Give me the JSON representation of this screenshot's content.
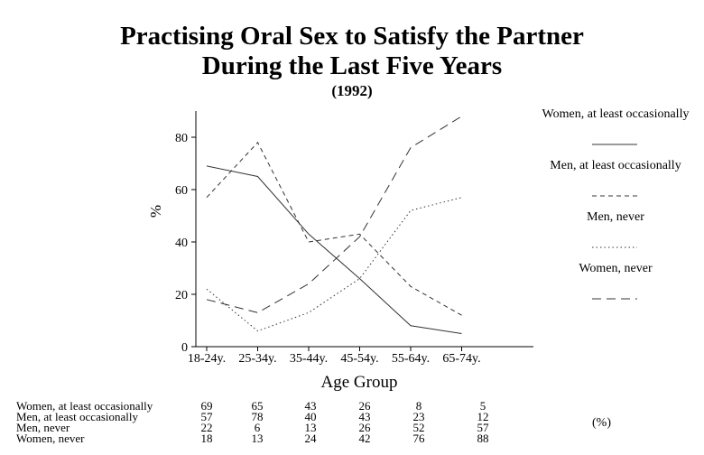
{
  "chart_data": {
    "type": "line",
    "title": "Practising Oral Sex to Satisfy the Partner",
    "title_line2": "During the Last Five Years",
    "subtitle": "(1992)",
    "xlabel": "Age Group",
    "ylabel": "%",
    "categories": [
      "18-24y.",
      "25-34y.",
      "35-44y.",
      "45-54y.",
      "55-64y.",
      "65-74y."
    ],
    "ylim": [
      0,
      90
    ],
    "yticks": [
      0,
      20,
      40,
      60,
      80
    ],
    "grid": false,
    "legend_position": "right",
    "series": [
      {
        "name": "Women, at least occasionally",
        "style": "solid",
        "values": [
          69,
          65,
          43,
          26,
          8,
          5
        ]
      },
      {
        "name": "Men, at least occasionally",
        "style": "dashed-short",
        "values": [
          57,
          78,
          40,
          43,
          23,
          12
        ]
      },
      {
        "name": "Men, never",
        "style": "dotted",
        "values": [
          22,
          6,
          13,
          26,
          52,
          57
        ]
      },
      {
        "name": "Women, never",
        "style": "dashed-long",
        "values": [
          18,
          13,
          24,
          42,
          76,
          88
        ]
      }
    ],
    "table_unit": "(%)"
  }
}
